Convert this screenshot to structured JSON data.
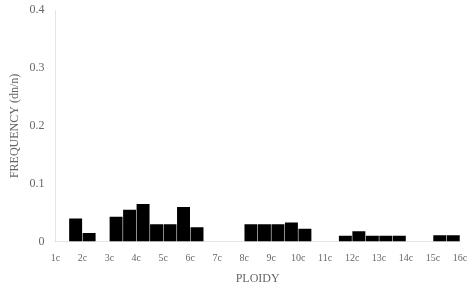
{
  "chart_data": {
    "type": "bar",
    "xlabel": "PLOIDY",
    "ylabel": "FREQUENCY (dn/n)",
    "x": [
      1.25,
      1.75,
      2.25,
      2.75,
      3.25,
      3.75,
      4.25,
      4.75,
      5.25,
      5.75,
      6.25,
      6.75,
      7.25,
      7.75,
      8.25,
      8.75,
      9.25,
      9.75,
      10.25,
      10.75,
      11.25,
      11.75,
      12.25,
      12.75,
      13.25,
      13.75,
      14.25,
      14.75,
      15.25,
      15.75
    ],
    "values": [
      0.0,
      0.04,
      0.015,
      0.0,
      0.043,
      0.055,
      0.065,
      0.03,
      0.03,
      0.06,
      0.025,
      0.0,
      0.0,
      0.0,
      0.03,
      0.03,
      0.03,
      0.033,
      0.022,
      0.0,
      0.0,
      0.01,
      0.018,
      0.01,
      0.01,
      0.01,
      0.0,
      0.0,
      0.011,
      0.011
    ],
    "color": "#000000",
    "xlim": [
      1,
      16
    ],
    "xticks": [
      {
        "value": 1,
        "label": "1c"
      },
      {
        "value": 2,
        "label": "2c"
      },
      {
        "value": 3,
        "label": "3c"
      },
      {
        "value": 4,
        "label": "4c"
      },
      {
        "value": 5,
        "label": "5c"
      },
      {
        "value": 6,
        "label": "6c"
      },
      {
        "value": 7,
        "label": "7c"
      },
      {
        "value": 8,
        "label": "8c"
      },
      {
        "value": 9,
        "label": "9c"
      },
      {
        "value": 10,
        "label": "10c"
      },
      {
        "value": 11,
        "label": "11c"
      },
      {
        "value": 12,
        "label": "12c"
      },
      {
        "value": 13,
        "label": "13c"
      },
      {
        "value": 14,
        "label": "14c"
      },
      {
        "value": 15,
        "label": "15c"
      },
      {
        "value": 16,
        "label": "16c"
      }
    ],
    "ylim": [
      0.0,
      0.4
    ],
    "yticks": [
      0.0,
      0.1,
      0.2,
      0.3,
      0.4
    ],
    "grid": false
  }
}
